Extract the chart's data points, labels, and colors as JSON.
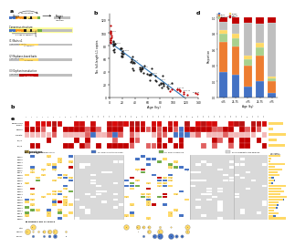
{
  "background_color": "#ffffff",
  "panel_a": {
    "colors": {
      "utr5": "#4472c4",
      "orf1": "#f7941d",
      "orf2": "#ffd966",
      "utr3": "#70ad47",
      "black": "#1a1a1a",
      "gray": "#bfbfbf",
      "gray2": "#d9d9d9",
      "red": "#c00000",
      "yellow_highlight": "#ffff99",
      "darkgray": "#7f7f7f"
    }
  },
  "panel_b": {
    "trend_color": "#2e75b6",
    "red_color": "#c00000",
    "black_color": "#1a1a1a",
    "xlabel": "Age (ky)",
    "ylabel": "No. full-length L1 copies"
  },
  "panel_d": {
    "colors_legend": [
      "#4472c4",
      "#ed7d31",
      "#a9d18e",
      "#ffd966",
      "#bfbfbf",
      "#c00000"
    ],
    "labels_legend": [
      "RC/L1",
      "RC/L1 act",
      "Endo",
      "Primed",
      "Inactive",
      "Other"
    ],
    "bar_colors": [
      "#4472c4",
      "#ed7d31",
      "#a9d18e",
      "#ffd966",
      "#bfbfbf",
      "#c00000"
    ],
    "cats": [
      "<25",
      "25-75",
      ">75",
      "25-75",
      ">75"
    ],
    "data": [
      [
        0.32,
        0.38,
        0.1,
        0.05,
        0.1,
        0.05
      ],
      [
        0.28,
        0.36,
        0.1,
        0.06,
        0.13,
        0.07
      ],
      [
        0.14,
        0.26,
        0.08,
        0.04,
        0.42,
        0.06
      ],
      [
        0.2,
        0.33,
        0.1,
        0.05,
        0.25,
        0.07
      ],
      [
        0.06,
        0.14,
        0.04,
        0.02,
        0.68,
        0.06
      ]
    ],
    "xlabel": "Age (ky)",
    "ylabel": "Proportion"
  },
  "heatmap": {
    "gray_color": "#d9d9d9",
    "white_color": "#ffffff",
    "red_high": "#c00000",
    "red_med": "#e06060",
    "red_low": "#f4b8b8",
    "yellow": "#ffd966",
    "blue": "#4472c4",
    "green": "#70ad47",
    "orange": "#ed7d31",
    "row_strip_red": "#c00000",
    "row_strip_orange": "#ed7d31",
    "row_strip_gray": "#d9d9d9"
  },
  "legend_items": [
    {
      "label": "No. of TEs in internal clones",
      "color": "#ffd966"
    },
    {
      "label": "No. of TEs in matched control",
      "color": "#4472c4"
    },
    {
      "label": "No. of TEs in germline",
      "color": "#70ad47"
    },
    {
      "label": "Source element in the germline",
      "color": "#d9d9d9"
    }
  ]
}
